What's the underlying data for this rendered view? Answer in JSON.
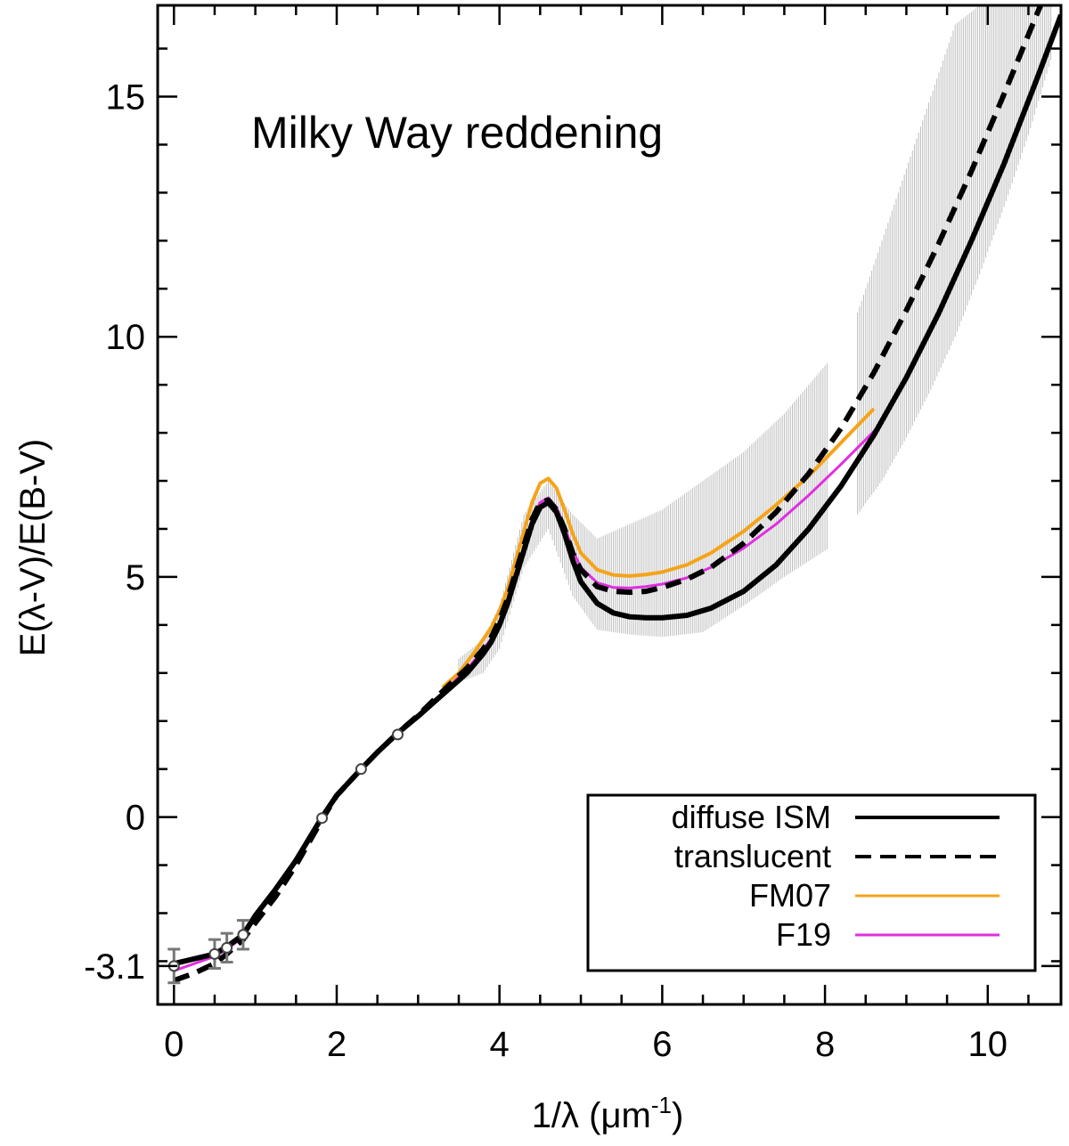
{
  "chart_data": {
    "type": "line",
    "title": "Milky Way reddening",
    "xlabel": "1/λ (μm",
    "xlabel_sup": "-1",
    "xlabel_end": ")",
    "ylabel": "E(λ-V)/E(B-V)",
    "xlim": [
      -0.2,
      10.9
    ],
    "ylim": [
      -3.9,
      16.9
    ],
    "x_ticks": [
      0,
      2,
      4,
      6,
      8,
      10
    ],
    "x_tick_labels": [
      "0",
      "2",
      "4",
      "6",
      "8",
      "10"
    ],
    "x_minor_step": 0.5,
    "y_ticks": [
      -3.1,
      0,
      5,
      10,
      15
    ],
    "y_tick_labels": [
      "-3.1",
      "0",
      "5",
      "10",
      "15"
    ],
    "y_minor_step": 1,
    "legend_position": "bottom-right",
    "series": [
      {
        "name": "diffuse ISM",
        "color": "#000000",
        "style": "solid",
        "x": [
          0.0,
          0.25,
          0.5,
          0.65,
          0.85,
          1.0,
          1.25,
          1.5,
          1.82,
          2.0,
          2.3,
          2.5,
          2.75,
          3.0,
          3.2,
          3.4,
          3.6,
          3.8,
          3.9,
          4.0,
          4.1,
          4.2,
          4.3,
          4.4,
          4.5,
          4.6,
          4.7,
          4.8,
          4.9,
          5.0,
          5.2,
          5.4,
          5.6,
          5.8,
          6.0,
          6.3,
          6.6,
          7.0,
          7.4,
          7.8,
          8.2,
          8.6,
          9.0,
          9.4,
          9.8,
          10.2,
          10.6,
          10.9
        ],
        "y": [
          -3.05,
          -2.95,
          -2.85,
          -2.7,
          -2.45,
          -2.05,
          -1.5,
          -0.9,
          0.0,
          0.45,
          1.0,
          1.35,
          1.75,
          2.1,
          2.4,
          2.7,
          3.0,
          3.4,
          3.65,
          4.0,
          4.45,
          5.0,
          5.55,
          6.1,
          6.45,
          6.55,
          6.35,
          5.9,
          5.35,
          4.9,
          4.45,
          4.25,
          4.17,
          4.15,
          4.15,
          4.2,
          4.35,
          4.7,
          5.25,
          6.0,
          6.9,
          7.95,
          9.15,
          10.5,
          12.0,
          13.6,
          15.35,
          16.7
        ]
      },
      {
        "name": "translucent",
        "color": "#000000",
        "style": "dashed",
        "x": [
          0.0,
          0.25,
          0.5,
          0.65,
          0.85,
          1.0,
          1.25,
          1.5,
          1.82,
          2.0,
          2.3,
          2.5,
          2.75,
          3.0,
          3.2,
          3.4,
          3.6,
          3.8,
          3.9,
          4.0,
          4.1,
          4.2,
          4.3,
          4.4,
          4.5,
          4.6,
          4.7,
          4.8,
          4.9,
          5.0,
          5.2,
          5.4,
          5.6,
          5.8,
          6.0,
          6.3,
          6.6,
          7.0,
          7.4,
          7.8,
          8.2,
          8.6,
          9.0,
          9.4,
          9.8,
          10.2,
          10.6,
          10.7
        ],
        "y": [
          -3.4,
          -3.25,
          -3.05,
          -2.85,
          -2.55,
          -2.2,
          -1.65,
          -1.0,
          -0.05,
          0.45,
          1.0,
          1.35,
          1.75,
          2.12,
          2.45,
          2.78,
          3.1,
          3.5,
          3.75,
          4.1,
          4.55,
          5.1,
          5.65,
          6.2,
          6.55,
          6.6,
          6.4,
          6.0,
          5.5,
          5.15,
          4.8,
          4.7,
          4.68,
          4.7,
          4.78,
          4.95,
          5.2,
          5.7,
          6.35,
          7.15,
          8.1,
          9.25,
          10.55,
          11.95,
          13.45,
          15.05,
          16.7,
          17.1
        ]
      },
      {
        "name": "FM07",
        "color": "#f5a31a",
        "style": "solid",
        "x": [
          3.3,
          3.5,
          3.7,
          3.9,
          4.0,
          4.1,
          4.2,
          4.3,
          4.4,
          4.5,
          4.6,
          4.7,
          4.8,
          4.9,
          5.0,
          5.2,
          5.4,
          5.6,
          5.8,
          6.0,
          6.3,
          6.6,
          7.0,
          7.4,
          7.8,
          8.2,
          8.6
        ],
        "y": [
          2.7,
          3.0,
          3.45,
          3.95,
          4.3,
          4.75,
          5.35,
          5.95,
          6.55,
          6.95,
          7.05,
          6.85,
          6.4,
          5.9,
          5.5,
          5.15,
          5.04,
          5.02,
          5.05,
          5.1,
          5.25,
          5.5,
          5.95,
          6.5,
          7.1,
          7.8,
          8.5
        ]
      },
      {
        "name": "F19",
        "color": "#e02ee0",
        "style": "solid",
        "x": [
          0.0,
          0.25,
          0.5,
          0.65,
          0.85,
          1.0,
          1.25,
          1.5,
          1.82,
          2.0,
          2.3,
          2.5,
          2.75,
          3.0,
          3.2,
          3.4,
          3.6,
          3.8,
          3.9,
          4.0,
          4.1,
          4.2,
          4.3,
          4.4,
          4.5,
          4.6,
          4.7,
          4.8,
          4.9,
          5.0,
          5.2,
          5.4,
          5.6,
          5.8,
          6.0,
          6.3,
          6.6,
          7.0,
          7.4,
          7.8,
          8.2,
          8.7
        ],
        "y": [
          -3.2,
          -3.05,
          -2.9,
          -2.75,
          -2.5,
          -2.1,
          -1.5,
          -0.85,
          0.0,
          0.45,
          1.0,
          1.35,
          1.75,
          2.1,
          2.42,
          2.75,
          3.08,
          3.48,
          3.72,
          4.05,
          4.5,
          5.05,
          5.65,
          6.2,
          6.55,
          6.65,
          6.45,
          6.05,
          5.55,
          5.2,
          4.88,
          4.78,
          4.77,
          4.8,
          4.85,
          4.98,
          5.2,
          5.6,
          6.1,
          6.7,
          7.35,
          8.2
        ]
      }
    ],
    "data_points": {
      "x": [
        0.0,
        0.5,
        0.65,
        0.85,
        1.82,
        2.3,
        2.75
      ],
      "y": [
        -3.1,
        -2.85,
        -2.72,
        -2.45,
        -0.02,
        1.0,
        1.72
      ],
      "err": [
        0.35,
        0.3,
        0.3,
        0.3,
        0,
        0,
        0
      ]
    },
    "bands": [
      {
        "name": "diffuse-ism-band",
        "x": [
          3.5,
          3.8,
          4.0,
          4.3,
          4.6,
          4.9,
          5.2,
          5.6,
          6.0,
          6.5,
          7.0,
          7.5,
          8.05
        ],
        "lower": [
          2.8,
          3.0,
          3.5,
          5.2,
          6.0,
          4.6,
          3.9,
          3.8,
          3.75,
          3.85,
          4.4,
          5.0,
          5.6
        ],
        "upper": [
          3.3,
          3.7,
          4.4,
          6.3,
          7.0,
          6.3,
          5.8,
          6.1,
          6.4,
          7.0,
          7.6,
          8.4,
          9.5
        ]
      },
      {
        "name": "translucent-band",
        "x": [
          8.4,
          8.7,
          9.0,
          9.3,
          9.6,
          9.9,
          10.2,
          10.5,
          10.8
        ],
        "lower": [
          6.3,
          7.0,
          7.9,
          8.9,
          10.0,
          11.3,
          12.7,
          14.2,
          15.9
        ],
        "upper": [
          10.5,
          12.0,
          13.5,
          15.0,
          16.5,
          16.9,
          16.9,
          16.9,
          16.9
        ]
      }
    ]
  }
}
